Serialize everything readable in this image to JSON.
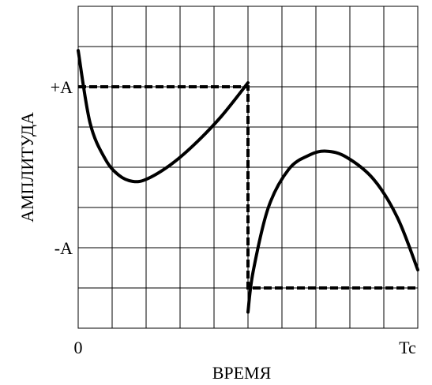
{
  "chart_data": {
    "type": "line",
    "xlabel": "ВРЕМЯ",
    "ylabel": "АМПЛИТУДА",
    "xlim": [
      0,
      10
    ],
    "ylim": [
      -2,
      6
    ],
    "grid": true,
    "x_tick_labels": [
      {
        "x": 0,
        "label": "0"
      },
      {
        "x": 10,
        "label": "Tc"
      }
    ],
    "y_tick_labels": [
      {
        "y": 4,
        "label": "+A"
      },
      {
        "y": -1,
        "label": "-A"
      }
    ],
    "series": [
      {
        "style": "solid",
        "color": "#000000",
        "points": [
          [
            0.0,
            4.9
          ],
          [
            0.35,
            3.1
          ],
          [
            0.8,
            2.2
          ],
          [
            1.2,
            1.8
          ],
          [
            1.6,
            1.65
          ],
          [
            2.0,
            1.7
          ],
          [
            2.7,
            2.05
          ],
          [
            3.4,
            2.55
          ],
          [
            4.2,
            3.25
          ],
          [
            5.0,
            4.1
          ]
        ]
      },
      {
        "style": "solid",
        "color": "#000000",
        "points": [
          [
            5.0,
            -1.6
          ],
          [
            5.15,
            -0.6
          ],
          [
            5.6,
            1.0
          ],
          [
            6.2,
            1.95
          ],
          [
            6.8,
            2.3
          ],
          [
            7.3,
            2.4
          ],
          [
            7.9,
            2.25
          ],
          [
            8.7,
            1.7
          ],
          [
            9.4,
            0.75
          ],
          [
            10.0,
            -0.55
          ]
        ]
      },
      {
        "style": "dashed",
        "color": "#000000",
        "points": [
          [
            0,
            4
          ],
          [
            5,
            4
          ],
          [
            5,
            -1
          ],
          [
            10,
            -1
          ]
        ]
      }
    ]
  }
}
